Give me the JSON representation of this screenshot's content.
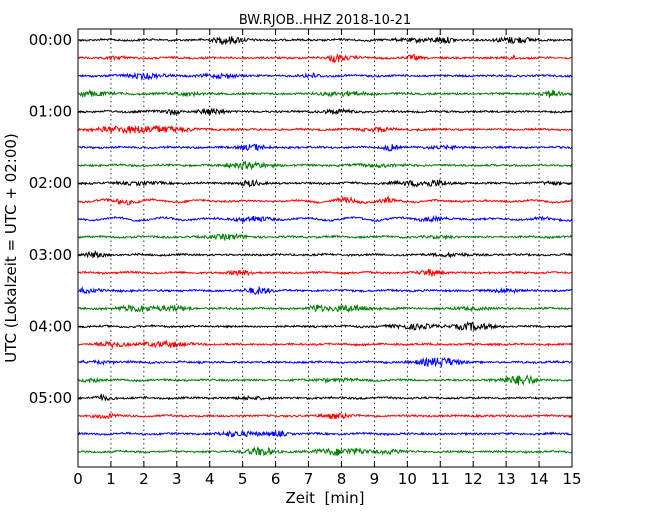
{
  "chart_data": {
    "type": "line",
    "title": "BW.RJOB..HHZ 2018-10-21",
    "xlabel": "Zeit  [min]",
    "ylabel": "UTC (Lokalzeit = UTC + 02:00)",
    "xlim": [
      0,
      15
    ],
    "x_ticks": [
      "0",
      "1",
      "2",
      "3",
      "4",
      "5",
      "6",
      "7",
      "8",
      "9",
      "10",
      "11",
      "12",
      "13",
      "14",
      "15"
    ],
    "y_tick_labels": [
      "00:00",
      "01:00",
      "02:00",
      "03:00",
      "04:00",
      "05:00"
    ],
    "trace_interval_min": 15,
    "trace_count": 24,
    "trace_colors": [
      "#000000",
      "#ff0000",
      "#0000ff",
      "#008000"
    ],
    "vertical_grid": "dotted"
  }
}
